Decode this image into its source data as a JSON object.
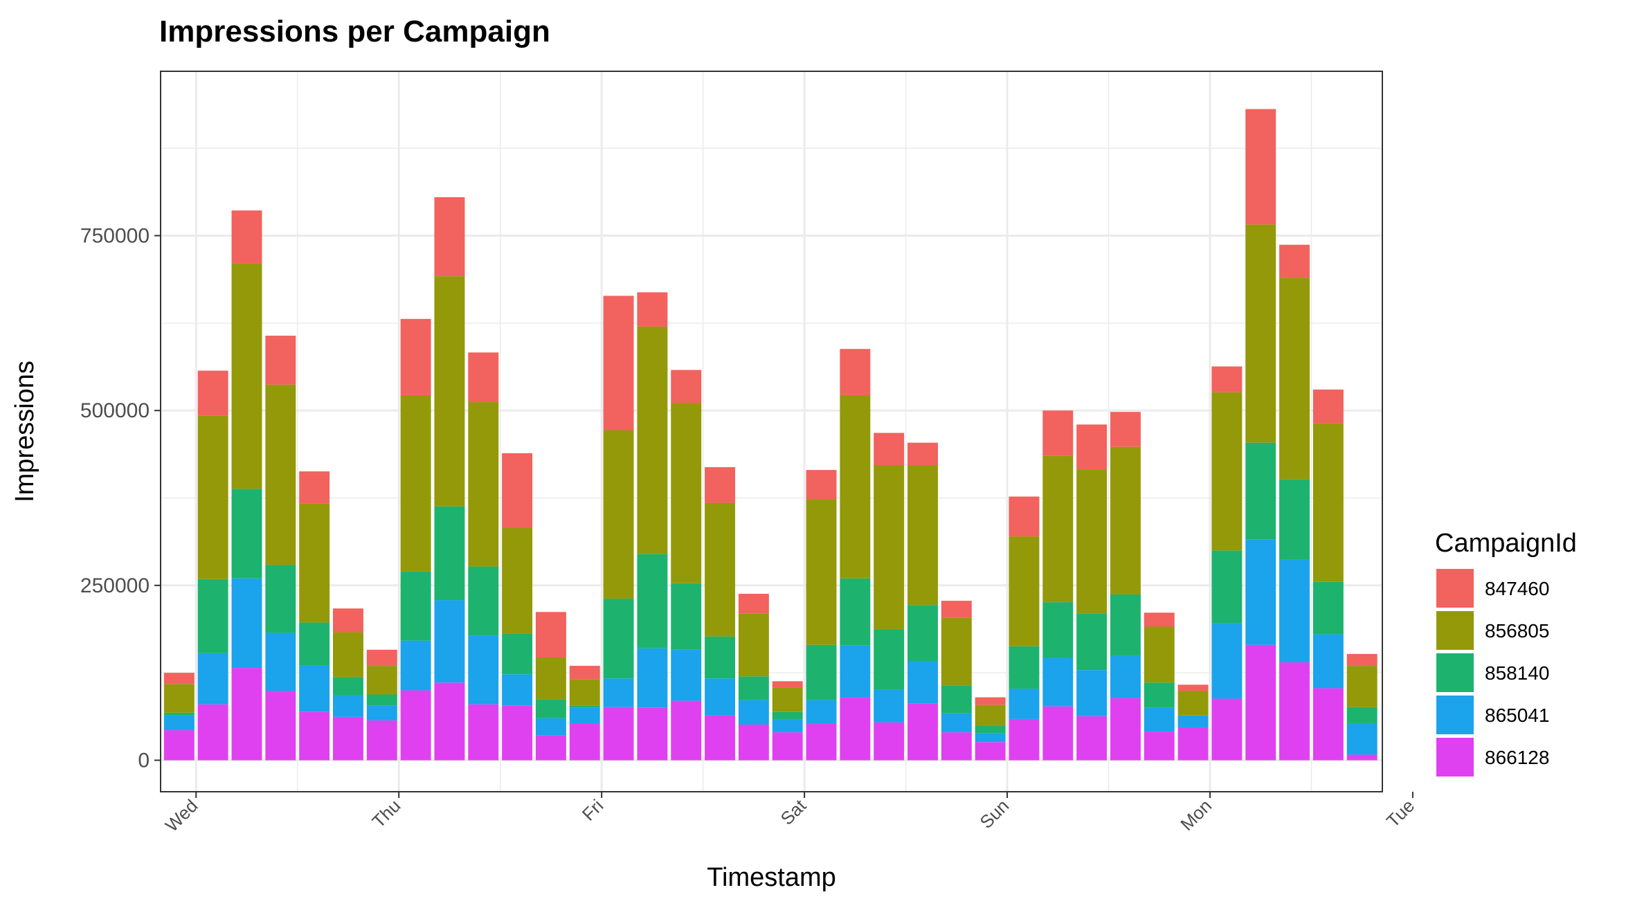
{
  "chart_data": {
    "type": "bar",
    "stacked": true,
    "title": "Impressions per Campaign",
    "xlabel": "Timestamp",
    "ylabel": "Impressions",
    "ylim": [
      -45000,
      985000
    ],
    "yticks": [
      0,
      250000,
      500000,
      750000
    ],
    "ytick_labels": [
      "0",
      "250000",
      "500000",
      "750000"
    ],
    "xlim": [
      -0.55,
      35.6
    ],
    "x_day_ticks": [
      {
        "label": "Wed",
        "x": 0.5
      },
      {
        "label": "Thu",
        "x": 6.5
      },
      {
        "label": "Fri",
        "x": 12.5
      },
      {
        "label": "Sat",
        "x": 18.5
      },
      {
        "label": "Sun",
        "x": 24.5
      },
      {
        "label": "Mon",
        "x": 30.5
      },
      {
        "label": "Tue",
        "x": 36.5
      }
    ],
    "grid": true,
    "legend": {
      "title": "CampaignId",
      "position": "right"
    },
    "series": [
      {
        "name": "866128",
        "color": "#E041F0",
        "values": [
          43000,
          80000,
          132000,
          99000,
          69000,
          62000,
          57000,
          100000,
          111000,
          80000,
          78000,
          36000,
          53000,
          76000,
          75000,
          85000,
          64000,
          51000,
          40000,
          52000,
          90000,
          54000,
          81000,
          40000,
          26000,
          59000,
          77000,
          63000,
          89000,
          41000,
          47000,
          88000,
          165000,
          140000,
          103000,
          8000
        ]
      },
      {
        "name": "865041",
        "color": "#1BA3EC",
        "values": [
          21000,
          73000,
          128000,
          83000,
          67000,
          31000,
          21000,
          71000,
          118000,
          98000,
          45000,
          24000,
          22000,
          41000,
          85000,
          73000,
          53000,
          35000,
          18000,
          34000,
          74000,
          47000,
          61000,
          27000,
          13000,
          43000,
          69000,
          66000,
          60000,
          34000,
          17000,
          108000,
          151000,
          147000,
          77000,
          45000
        ]
      },
      {
        "name": "858140",
        "color": "#1DB36E",
        "values": [
          4000,
          106000,
          128000,
          97000,
          61000,
          26000,
          16000,
          99000,
          134000,
          99000,
          58000,
          27000,
          3000,
          114000,
          135000,
          95000,
          60000,
          34000,
          11000,
          79000,
          96000,
          86000,
          80000,
          40000,
          10000,
          61000,
          80000,
          81000,
          88000,
          36000,
          0,
          104000,
          138000,
          115000,
          75000,
          23000
        ]
      },
      {
        "name": "856805",
        "color": "#94990A",
        "values": [
          41000,
          234000,
          322000,
          258000,
          170000,
          64000,
          41000,
          252000,
          329000,
          235000,
          151000,
          60000,
          38000,
          241000,
          325000,
          258000,
          191000,
          90000,
          35000,
          208000,
          262000,
          235000,
          200000,
          97000,
          30000,
          157000,
          209000,
          206000,
          211000,
          80000,
          35000,
          226000,
          312000,
          288000,
          227000,
          59000
        ]
      },
      {
        "name": "847460",
        "color": "#F2625E",
        "values": [
          16000,
          64000,
          76000,
          70000,
          46000,
          34000,
          23000,
          109000,
          113000,
          71000,
          107000,
          65000,
          19000,
          192000,
          49000,
          47000,
          51000,
          28000,
          9000,
          42000,
          66000,
          46000,
          32000,
          24000,
          11000,
          57000,
          65000,
          64000,
          50000,
          20000,
          9000,
          37000,
          165000,
          47000,
          48000,
          17000
        ]
      }
    ]
  }
}
